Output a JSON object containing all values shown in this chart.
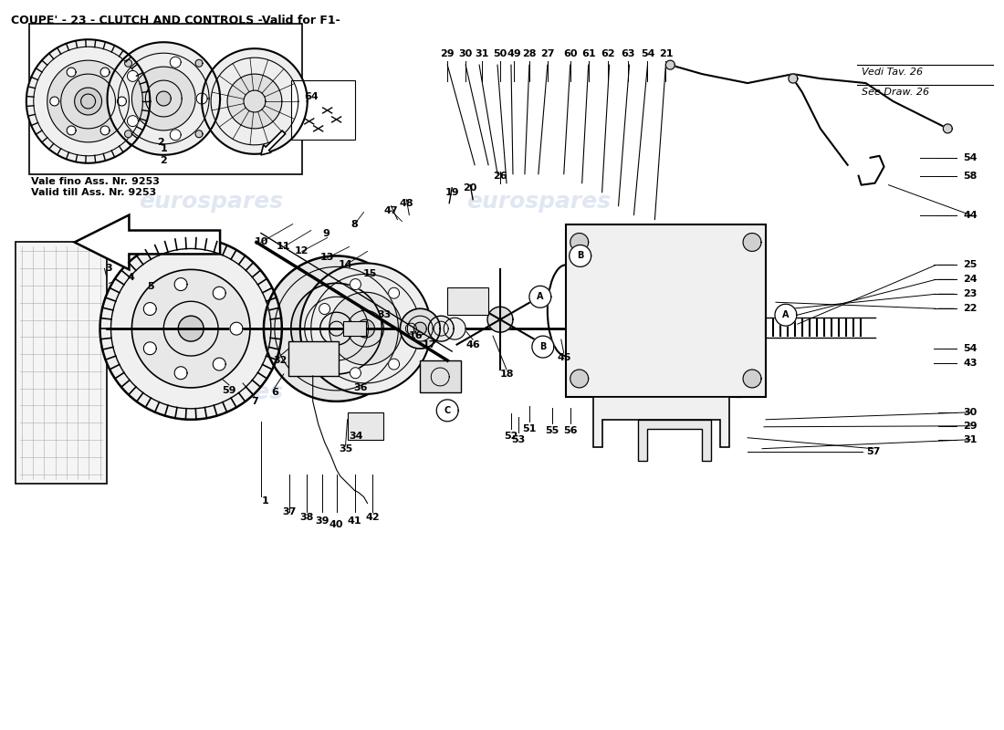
{
  "title": "COUPE' - 23 - CLUTCH AND CONTROLS -Valid for F1-",
  "title_fontsize": 9,
  "background_color": "#ffffff",
  "watermark_text": "eurospares",
  "see_draw_text1": "Vedi Tav. 26",
  "see_draw_text2": "See Draw. 26",
  "note_text1": "Vale fino Ass. Nr. 9253",
  "note_text2": "Valid till Ass. Nr. 9253",
  "fig_width": 11.0,
  "fig_height": 8.0,
  "dpi": 100
}
